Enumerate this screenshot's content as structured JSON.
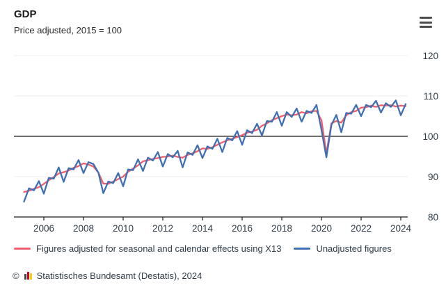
{
  "header": {
    "title": "GDP",
    "subtitle": "Price adjusted, 2015 = 100"
  },
  "menu": {
    "icon": "hamburger-menu-icon"
  },
  "chart_data": {
    "type": "line",
    "title": "GDP",
    "subtitle": "Price adjusted, 2015 = 100",
    "x_unit": "year, quarterly points",
    "x_start": 2005.0,
    "x_step": 0.25,
    "x_range": [
      2005.0,
      2024.25
    ],
    "x_ticks": [
      2006,
      2008,
      2010,
      2012,
      2014,
      2016,
      2018,
      2020,
      2022,
      2024
    ],
    "y_ticks": [
      80,
      90,
      100,
      110,
      120
    ],
    "ylim": [
      80,
      122
    ],
    "reference_line": 100,
    "grid": true,
    "legend_position": "bottom",
    "axis_text_color": "#2e3b47",
    "grid_color": "#f0f0f0",
    "axis_color": "#1a1a1a",
    "series": [
      {
        "name": "Figures adjusted for seasonal and calendar effects using X13",
        "color": "#f15f6d",
        "values": [
          86.2,
          86.5,
          87.0,
          87.4,
          88.2,
          89.1,
          89.9,
          90.8,
          91.1,
          91.5,
          92.2,
          92.6,
          93.3,
          93.0,
          92.5,
          91.0,
          88.3,
          88.2,
          88.8,
          89.4,
          90.0,
          91.2,
          92.0,
          92.8,
          93.8,
          94.1,
          94.4,
          94.6,
          94.9,
          95.0,
          95.2,
          94.9,
          94.7,
          95.4,
          95.8,
          96.3,
          97.0,
          96.9,
          97.3,
          97.9,
          98.5,
          99.0,
          99.4,
          99.8,
          100.3,
          100.9,
          101.2,
          101.6,
          102.6,
          103.2,
          104.0,
          104.5,
          105.0,
          105.4,
          105.2,
          105.4,
          106.0,
          105.7,
          106.2,
          106.3,
          104.0,
          95.8,
          103.2,
          103.8,
          103.4,
          105.2,
          106.0,
          106.3,
          107.1,
          107.2,
          107.6,
          107.3,
          107.7,
          107.6,
          107.7,
          107.4,
          107.6,
          107.5
        ]
      },
      {
        "name": "Unadjusted figures",
        "color": "#3e6fb2",
        "values": [
          83.8,
          87.1,
          86.6,
          88.9,
          85.8,
          89.7,
          89.5,
          92.3,
          88.7,
          92.1,
          91.8,
          94.1,
          90.9,
          93.6,
          93.1,
          91.0,
          85.9,
          88.8,
          88.4,
          90.9,
          87.6,
          91.8,
          91.6,
          94.3,
          91.4,
          94.7,
          94.0,
          96.1,
          92.5,
          95.6,
          94.8,
          96.4,
          92.3,
          96.0,
          95.4,
          97.8,
          94.6,
          97.5,
          96.9,
          99.4,
          96.1,
          99.6,
          99.0,
          101.3,
          97.9,
          101.5,
          100.8,
          103.1,
          100.2,
          103.8,
          103.6,
          106.0,
          102.6,
          106.0,
          104.8,
          106.9,
          103.6,
          106.3,
          105.8,
          107.8,
          101.6,
          94.8,
          102.8,
          105.3,
          101.0,
          105.8,
          105.6,
          107.8,
          105.0,
          107.8,
          107.2,
          108.8,
          105.9,
          108.2,
          107.3,
          108.9,
          105.2,
          108.0
        ]
      }
    ]
  },
  "legend": {
    "items": [
      {
        "label": "Figures adjusted for seasonal and calendar effects using X13",
        "color": "#f15f6d"
      },
      {
        "label": "Unadjusted figures",
        "color": "#3e6fb2"
      }
    ]
  },
  "footer": {
    "copyright": "©",
    "logo_icon": "destatis-bars-icon",
    "source": "Statistisches Bundesamt (Destatis), 2024"
  }
}
